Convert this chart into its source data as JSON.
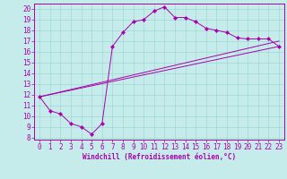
{
  "xlabel": "Windchill (Refroidissement éolien,°C)",
  "background_color": "#c5ecea",
  "line_color": "#aa00aa",
  "grid_color": "#9fd8d5",
  "xlim": [
    -0.5,
    23.5
  ],
  "ylim": [
    7.8,
    20.5
  ],
  "xticks": [
    0,
    1,
    2,
    3,
    4,
    5,
    6,
    7,
    8,
    9,
    10,
    11,
    12,
    13,
    14,
    15,
    16,
    17,
    18,
    19,
    20,
    21,
    22,
    23
  ],
  "yticks": [
    8,
    9,
    10,
    11,
    12,
    13,
    14,
    15,
    16,
    17,
    18,
    19,
    20
  ],
  "line1_x": [
    0,
    1,
    2,
    3,
    4,
    5,
    6,
    7,
    8,
    9,
    10,
    11,
    12,
    13,
    14,
    15,
    16,
    17,
    18,
    19,
    20,
    21,
    22,
    23
  ],
  "line1_y": [
    11.8,
    10.5,
    10.2,
    9.3,
    9.0,
    8.3,
    9.3,
    16.5,
    17.8,
    18.8,
    19.0,
    19.8,
    20.2,
    19.2,
    19.2,
    18.8,
    18.2,
    18.0,
    17.8,
    17.3,
    17.2,
    17.2,
    17.2,
    16.5
  ],
  "line2_x": [
    0,
    23
  ],
  "line2_y": [
    11.8,
    17.0
  ],
  "line3_x": [
    0,
    23
  ],
  "line3_y": [
    11.8,
    16.5
  ],
  "tick_fontsize": 5.5,
  "xlabel_fontsize": 5.5
}
